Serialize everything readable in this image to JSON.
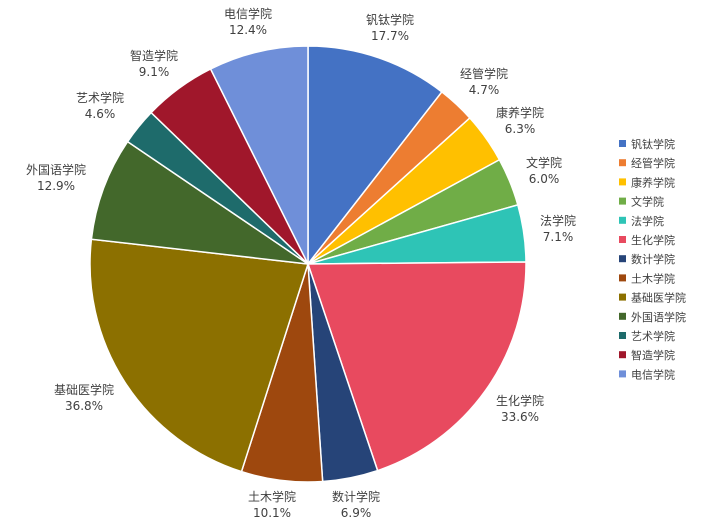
{
  "chart_data": {
    "type": "pie",
    "title": "",
    "legend_position": "right",
    "categories": [
      "钒钛学院",
      "经管学院",
      "康养学院",
      "文学院",
      "法学院",
      "生化学院",
      "数计学院",
      "土木学院",
      "基础医学院",
      "外国语学院",
      "艺术学院",
      "智造学院",
      "电信学院"
    ],
    "values": [
      17.7,
      4.7,
      6.3,
      6.0,
      7.1,
      33.6,
      6.9,
      10.1,
      36.8,
      12.9,
      4.6,
      9.1,
      12.4
    ],
    "labels": [
      "17.7%",
      "4.7%",
      "6.3%",
      "6.0%",
      "7.1%",
      "33.6%",
      "6.9%",
      "10.1%",
      "36.8%",
      "12.9%",
      "4.6%",
      "9.1%",
      "12.4%"
    ],
    "colors": [
      "#4472c4",
      "#ed7d31",
      "#ffc000",
      "#70ad47",
      "#2ec4b6",
      "#e84a5f",
      "#264478",
      "#9e480e",
      "#8c7000",
      "#43682b",
      "#1e6b6b",
      "#a0172b",
      "#6f8fd9"
    ]
  }
}
